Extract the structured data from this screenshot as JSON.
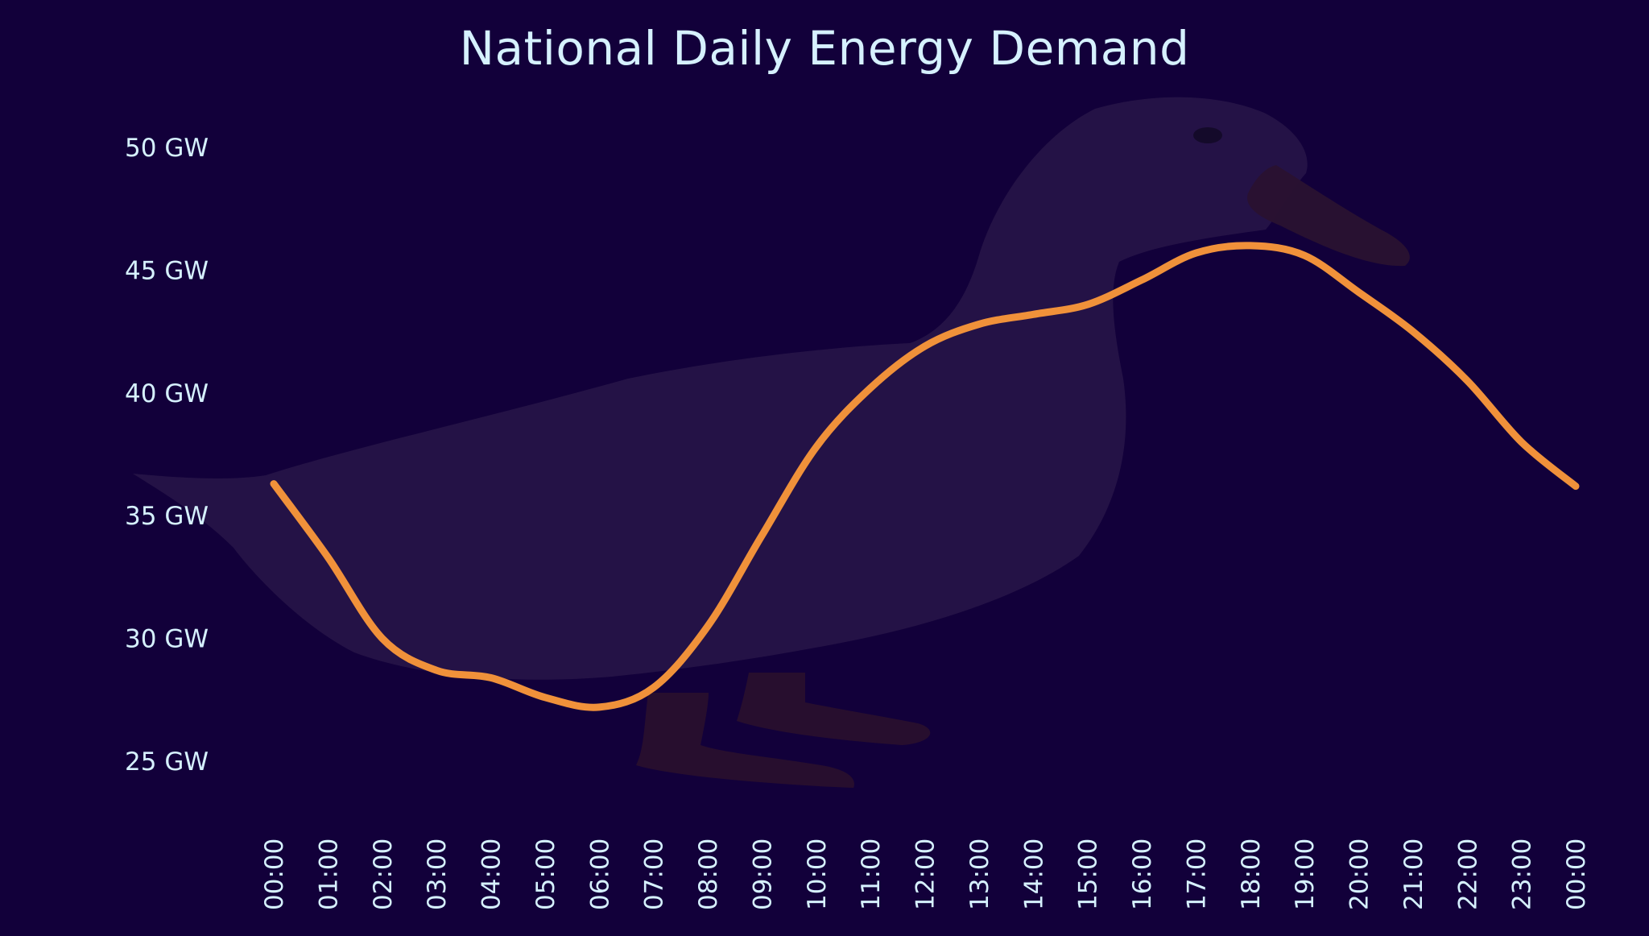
{
  "colors": {
    "background": "#12003a",
    "line": "#f0913a",
    "text": "#d6f1ff",
    "duck_body": "#261347",
    "duck_legs": "#2a0f2e",
    "duck_beak": "#2a1230"
  },
  "chart_data": {
    "type": "line",
    "title": "National Daily Energy Demand",
    "xlabel": "",
    "ylabel": "",
    "ylim": [
      25,
      50
    ],
    "grid": false,
    "legend": "none",
    "background_illustration": "duck-silhouette",
    "y_ticks": [
      {
        "value": 50,
        "label": "50 GW"
      },
      {
        "value": 45,
        "label": "45 GW"
      },
      {
        "value": 40,
        "label": "40 GW"
      },
      {
        "value": 35,
        "label": "35 GW"
      },
      {
        "value": 30,
        "label": "30 GW"
      },
      {
        "value": 25,
        "label": "25 GW"
      }
    ],
    "x": [
      "00:00",
      "01:00",
      "02:00",
      "03:00",
      "04:00",
      "05:00",
      "06:00",
      "07:00",
      "08:00",
      "09:00",
      "10:00",
      "11:00",
      "12:00",
      "13:00",
      "14:00",
      "15:00",
      "16:00",
      "17:00",
      "18:00",
      "19:00",
      "20:00",
      "21:00",
      "22:00",
      "23:00",
      "00:00"
    ],
    "series": [
      {
        "values": [
          36.3,
          33.3,
          30.0,
          28.7,
          28.4,
          27.6,
          27.2,
          28.0,
          30.5,
          34.2,
          37.8,
          40.2,
          41.9,
          42.8,
          43.2,
          43.6,
          44.6,
          45.7,
          46.0,
          45.6,
          44.1,
          42.5,
          40.5,
          38.0,
          36.2
        ]
      }
    ]
  }
}
